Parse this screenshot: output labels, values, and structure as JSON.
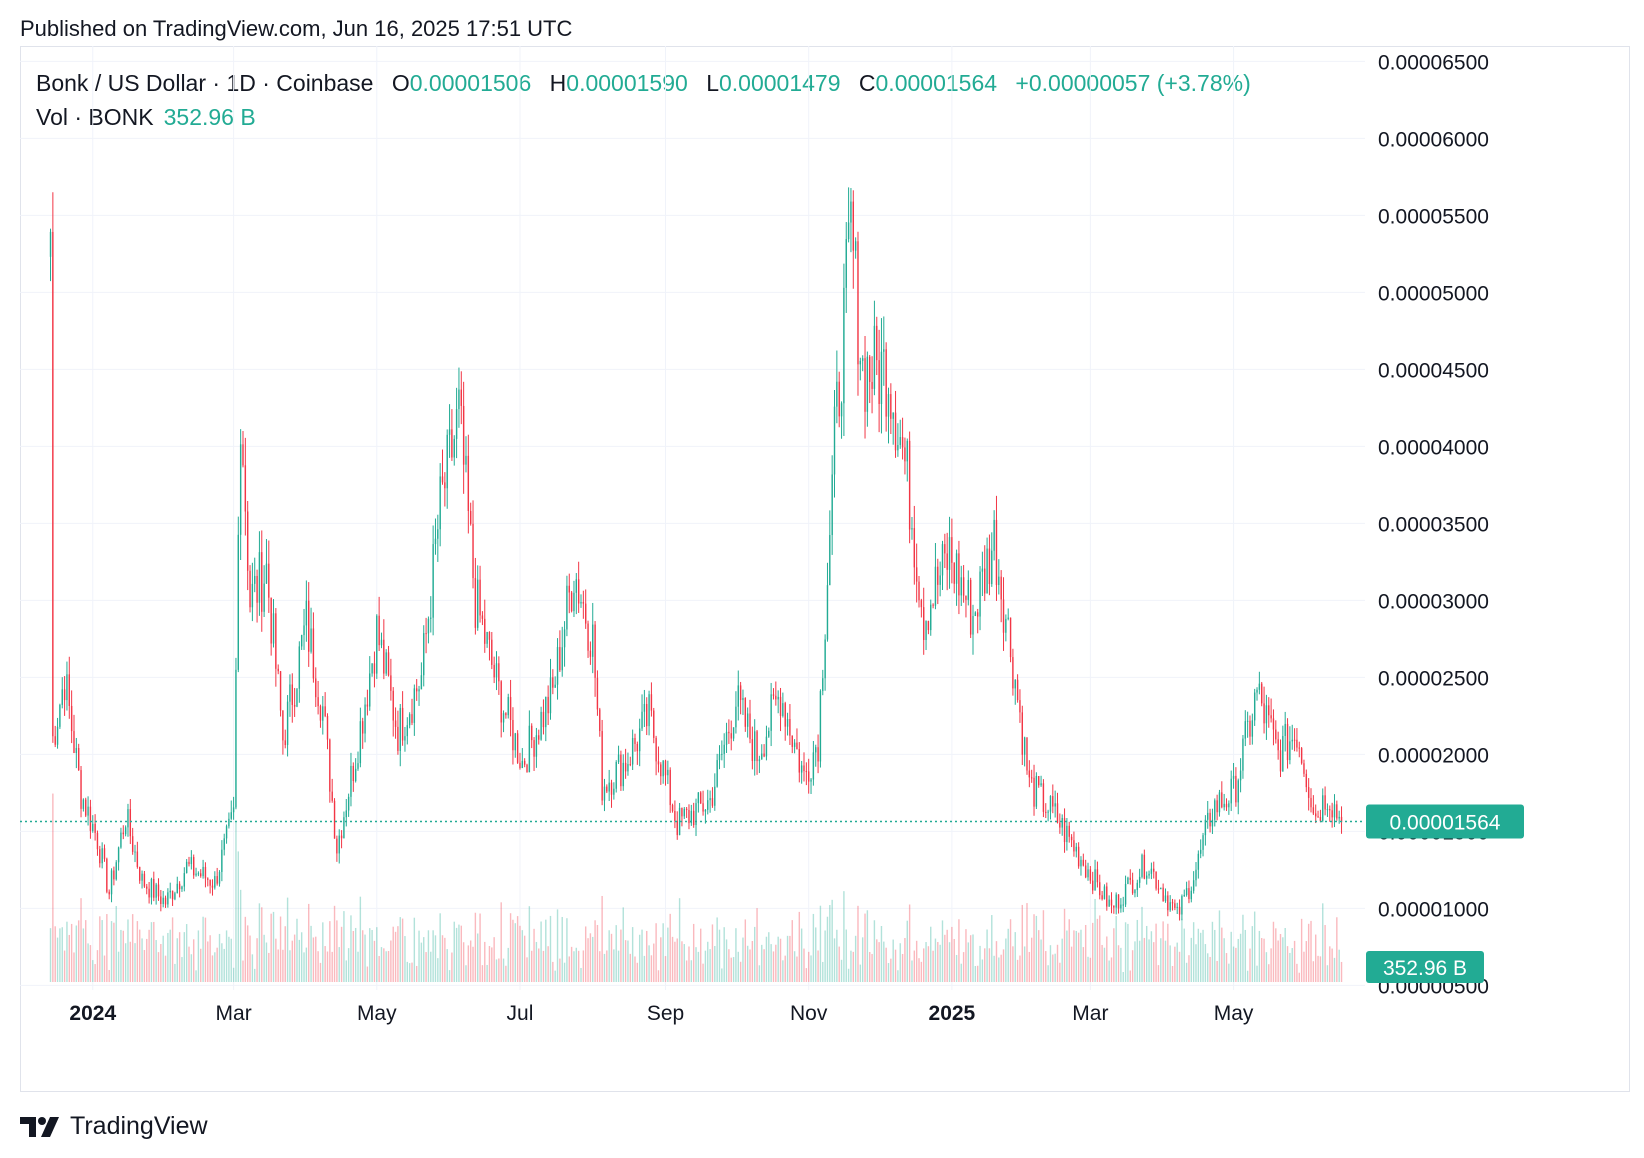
{
  "header": {
    "published": "Published on TradingView.com, Jun 16, 2025 17:51 UTC"
  },
  "legend": {
    "symbol": "Bonk / US Dollar · 1D · Coinbase",
    "o_label": "O",
    "o_value": "0.00001506",
    "h_label": "H",
    "h_value": "0.00001590",
    "l_label": "L",
    "l_value": "0.00001479",
    "c_label": "C",
    "c_value": "0.00001564",
    "change": "+0.00000057 (+3.78%)",
    "vol_label": "Vol · BONK",
    "vol_value": "352.96 B"
  },
  "colors": {
    "up": "#22ab94",
    "down": "#f23645",
    "price_badge": "#22ab94",
    "grid": "#f0f3fa"
  },
  "footer": {
    "brand": "TradingView",
    "logo_icon": "tradingview-logo-icon"
  },
  "chart_data": {
    "type": "candlestick",
    "symbol": "BONK/USD",
    "interval": "1D",
    "exchange": "Coinbase",
    "y_axis": {
      "ticks": [
        "0.00006500",
        "0.00006000",
        "0.00005500",
        "0.00005000",
        "0.00004500",
        "0.00004000",
        "0.00003500",
        "0.00003000",
        "0.00002500",
        "0.00002000",
        "0.00001500",
        "0.00001000",
        "0.00000500"
      ],
      "tick_values": [
        6.5e-05,
        6e-05,
        5.5e-05,
        5e-05,
        4.5e-05,
        4e-05,
        3.5e-05,
        3e-05,
        2.5e-05,
        2e-05,
        1.5e-05,
        1e-05,
        5e-06
      ],
      "ylim": [
        4.7e-06,
        6.6e-05
      ]
    },
    "x_axis": {
      "ticks": [
        "2024",
        "Mar",
        "May",
        "Jul",
        "Sep",
        "Nov",
        "2025",
        "Mar",
        "May"
      ],
      "tick_dates": [
        "2024-01-01",
        "2024-03-01",
        "2024-05-01",
        "2024-07-01",
        "2024-09-01",
        "2024-11-01",
        "2025-01-01",
        "2025-03-01",
        "2025-05-01"
      ],
      "bold_ticks": [
        "2024",
        "2025"
      ],
      "xlim": [
        "2023-12-01",
        "2025-06-26"
      ]
    },
    "last_price": 1.564e-05,
    "last_price_label": "0.00001564",
    "volume_label": "352.96 B",
    "grid": true,
    "series": [
      {
        "date": "2023-12-14",
        "close": 5.4e-05
      },
      {
        "date": "2023-12-15",
        "close": 2.1e-05
      },
      {
        "date": "2023-12-20",
        "close": 2.5e-05
      },
      {
        "date": "2023-12-27",
        "close": 1.75e-05
      },
      {
        "date": "2024-01-03",
        "close": 1.45e-05
      },
      {
        "date": "2024-01-08",
        "close": 1.1e-05
      },
      {
        "date": "2024-01-15",
        "close": 1.6e-05
      },
      {
        "date": "2024-01-22",
        "close": 1.18e-05
      },
      {
        "date": "2024-02-01",
        "close": 1.04e-05
      },
      {
        "date": "2024-02-10",
        "close": 1.27e-05
      },
      {
        "date": "2024-02-22",
        "close": 1.17e-05
      },
      {
        "date": "2024-03-01",
        "close": 1.6e-05
      },
      {
        "date": "2024-03-04",
        "close": 4.3e-05
      },
      {
        "date": "2024-03-08",
        "close": 3e-05
      },
      {
        "date": "2024-03-15",
        "close": 3.2e-05
      },
      {
        "date": "2024-03-22",
        "close": 2.1e-05
      },
      {
        "date": "2024-04-01",
        "close": 2.85e-05
      },
      {
        "date": "2024-04-08",
        "close": 2.3e-05
      },
      {
        "date": "2024-04-14",
        "close": 1.4e-05
      },
      {
        "date": "2024-04-22",
        "close": 2e-05
      },
      {
        "date": "2024-05-01",
        "close": 2.8e-05
      },
      {
        "date": "2024-05-10",
        "close": 2.15e-05
      },
      {
        "date": "2024-05-20",
        "close": 2.5e-05
      },
      {
        "date": "2024-05-28",
        "close": 3.6e-05
      },
      {
        "date": "2024-06-05",
        "close": 4.2e-05
      },
      {
        "date": "2024-06-12",
        "close": 3e-05
      },
      {
        "date": "2024-06-22",
        "close": 2.4e-05
      },
      {
        "date": "2024-07-02",
        "close": 1.95e-05
      },
      {
        "date": "2024-07-15",
        "close": 2.4e-05
      },
      {
        "date": "2024-07-24",
        "close": 3.2e-05
      },
      {
        "date": "2024-08-01",
        "close": 2.75e-05
      },
      {
        "date": "2024-08-05",
        "close": 1.8e-05
      },
      {
        "date": "2024-08-15",
        "close": 1.95e-05
      },
      {
        "date": "2024-08-25",
        "close": 2.25e-05
      },
      {
        "date": "2024-09-06",
        "close": 1.55e-05
      },
      {
        "date": "2024-09-20",
        "close": 1.7e-05
      },
      {
        "date": "2024-10-01",
        "close": 2.35e-05
      },
      {
        "date": "2024-10-10",
        "close": 2e-05
      },
      {
        "date": "2024-10-20",
        "close": 2.4e-05
      },
      {
        "date": "2024-10-30",
        "close": 1.85e-05
      },
      {
        "date": "2024-11-05",
        "close": 2.1e-05
      },
      {
        "date": "2024-11-12",
        "close": 4e-05
      },
      {
        "date": "2024-11-19",
        "close": 5.4e-05
      },
      {
        "date": "2024-11-24",
        "close": 4.5e-05
      },
      {
        "date": "2024-12-05",
        "close": 4.5e-05
      },
      {
        "date": "2024-12-13",
        "close": 3.8e-05
      },
      {
        "date": "2024-12-20",
        "close": 2.9e-05
      },
      {
        "date": "2024-12-31",
        "close": 3.3e-05
      },
      {
        "date": "2025-01-10",
        "close": 2.9e-05
      },
      {
        "date": "2025-01-19",
        "close": 3.4e-05
      },
      {
        "date": "2025-01-27",
        "close": 2.6e-05
      },
      {
        "date": "2025-02-03",
        "close": 1.8e-05
      },
      {
        "date": "2025-02-14",
        "close": 1.6e-05
      },
      {
        "date": "2025-02-26",
        "close": 1.3e-05
      },
      {
        "date": "2025-03-10",
        "close": 1e-05
      },
      {
        "date": "2025-03-25",
        "close": 1.3e-05
      },
      {
        "date": "2025-04-07",
        "close": 9.5e-06
      },
      {
        "date": "2025-04-15",
        "close": 1.25e-05
      },
      {
        "date": "2025-04-22",
        "close": 1.65e-05
      },
      {
        "date": "2025-05-01",
        "close": 1.75e-05
      },
      {
        "date": "2025-05-11",
        "close": 2.4e-05
      },
      {
        "date": "2025-05-20",
        "close": 2e-05
      },
      {
        "date": "2025-05-28",
        "close": 2.15e-05
      },
      {
        "date": "2025-06-05",
        "close": 1.6e-05
      },
      {
        "date": "2025-06-10",
        "close": 1.75e-05
      },
      {
        "date": "2025-06-16",
        "close": 1.56e-05
      }
    ]
  }
}
